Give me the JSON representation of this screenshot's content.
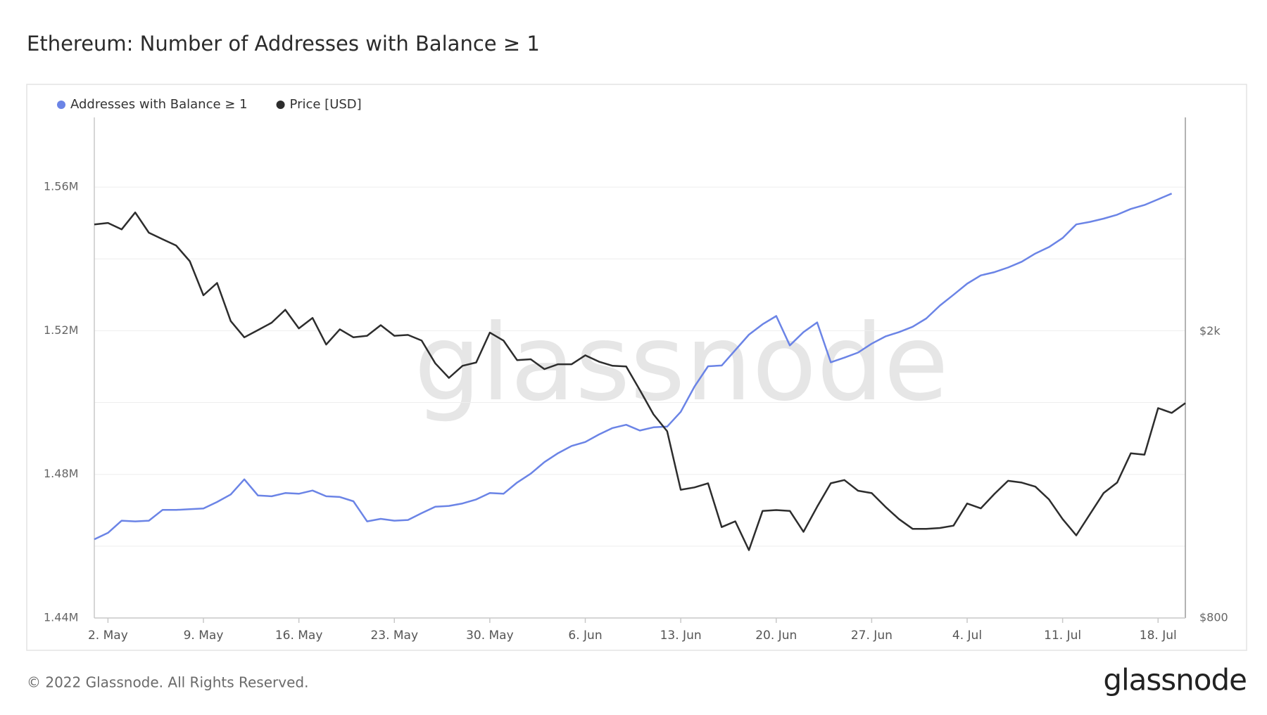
{
  "chart_data": {
    "type": "line",
    "title": "Ethereum: Number of Addresses with Balance ≥ 1",
    "watermark": "glassnode",
    "copyright": "© 2022 Glassnode. All Rights Reserved.",
    "logo": "glassnode",
    "categories": [
      null,
      "2. May",
      null,
      null,
      null,
      null,
      null,
      null,
      "9. May",
      null,
      null,
      null,
      null,
      null,
      null,
      "16. May",
      null,
      null,
      null,
      null,
      null,
      null,
      "23. May",
      null,
      null,
      null,
      null,
      null,
      null,
      "30. May",
      null,
      null,
      null,
      null,
      null,
      null,
      "6. Jun",
      null,
      null,
      null,
      null,
      null,
      null,
      "13. Jun",
      null,
      null,
      null,
      null,
      null,
      null,
      "20. Jun",
      null,
      null,
      null,
      null,
      null,
      null,
      "27. Jun",
      null,
      null,
      null,
      null,
      null,
      null,
      "4. Jul",
      null,
      null,
      null,
      null,
      null,
      null,
      "11. Jul",
      null,
      null,
      null,
      null,
      null,
      null,
      "18. Jul",
      null,
      null
    ],
    "series": [
      {
        "name": "Addresses with Balance ≥ 1",
        "color": "#6b84e6",
        "axis": "y",
        "values": [
          1461900,
          1463700,
          1467100,
          1466900,
          1467100,
          1470100,
          1470100,
          1470300,
          1470500,
          1472300,
          1474400,
          1478600,
          1474100,
          1473900,
          1474800,
          1474600,
          1475500,
          1473900,
          1473700,
          1472500,
          1466900,
          1467600,
          1467100,
          1467300,
          1469200,
          1471000,
          1471200,
          1471900,
          1473000,
          1474800,
          1474600,
          1477700,
          1480200,
          1483400,
          1485900,
          1487900,
          1489000,
          1491100,
          1492900,
          1493800,
          1492200,
          1493100,
          1493300,
          1497400,
          1504400,
          1510100,
          1510300,
          1514600,
          1518900,
          1521800,
          1524100,
          1515900,
          1519600,
          1522300,
          1511200,
          1512500,
          1513900,
          1516400,
          1518400,
          1519600,
          1521100,
          1523400,
          1527000,
          1530000,
          1533100,
          1535400,
          1536300,
          1537600,
          1539200,
          1541500,
          1543300,
          1545800,
          1549600,
          1550300,
          1551200,
          1552300,
          1553900,
          1555000,
          1556600,
          1558200,
          null
        ]
      },
      {
        "name": "Price [USD]",
        "color": "#2d2d2d",
        "axis": "y2",
        "values": [
          2818,
          2832,
          2774,
          2929,
          2745,
          2689,
          2634,
          2506,
          2247,
          2337,
          2069,
          1964,
          2010,
          2058,
          2145,
          2021,
          2090,
          1919,
          2015,
          1964,
          1974,
          2042,
          1974,
          1979,
          1944,
          1807,
          1725,
          1793,
          1812,
          1994,
          1944,
          1826,
          1831,
          1774,
          1802,
          1802,
          1854,
          1817,
          1793,
          1789,
          1659,
          1535,
          1454,
          1206,
          1215,
          1231,
          1070,
          1090,
          994,
          1127,
          1130,
          1127,
          1054,
          1142,
          1231,
          1244,
          1202,
          1193,
          1142,
          1098,
          1064,
          1064,
          1067,
          1075,
          1154,
          1136,
          1190,
          1241,
          1234,
          1218,
          1169,
          1098,
          1042,
          1115,
          1193,
          1234,
          1355,
          1349,
          1566,
          1542,
          1591
        ]
      }
    ],
    "ylim": [
      1440000,
      1579400
    ],
    "yticks": [
      {
        "value": 1440000,
        "label": "1.44M"
      },
      {
        "value": 1480000,
        "label": "1.48M"
      },
      {
        "value": 1520000,
        "label": "1.52M"
      },
      {
        "value": 1560000,
        "label": "1.56M"
      }
    ],
    "ygrid": [
      1460000,
      1500000,
      1540000
    ],
    "y2lim": [
      800,
      3970
    ],
    "y2scale": "log",
    "y2ticks": [
      {
        "value": 800,
        "label": "$800"
      },
      {
        "value": 2000,
        "label": "$2k"
      }
    ],
    "grid": true,
    "legend": "top-left"
  }
}
